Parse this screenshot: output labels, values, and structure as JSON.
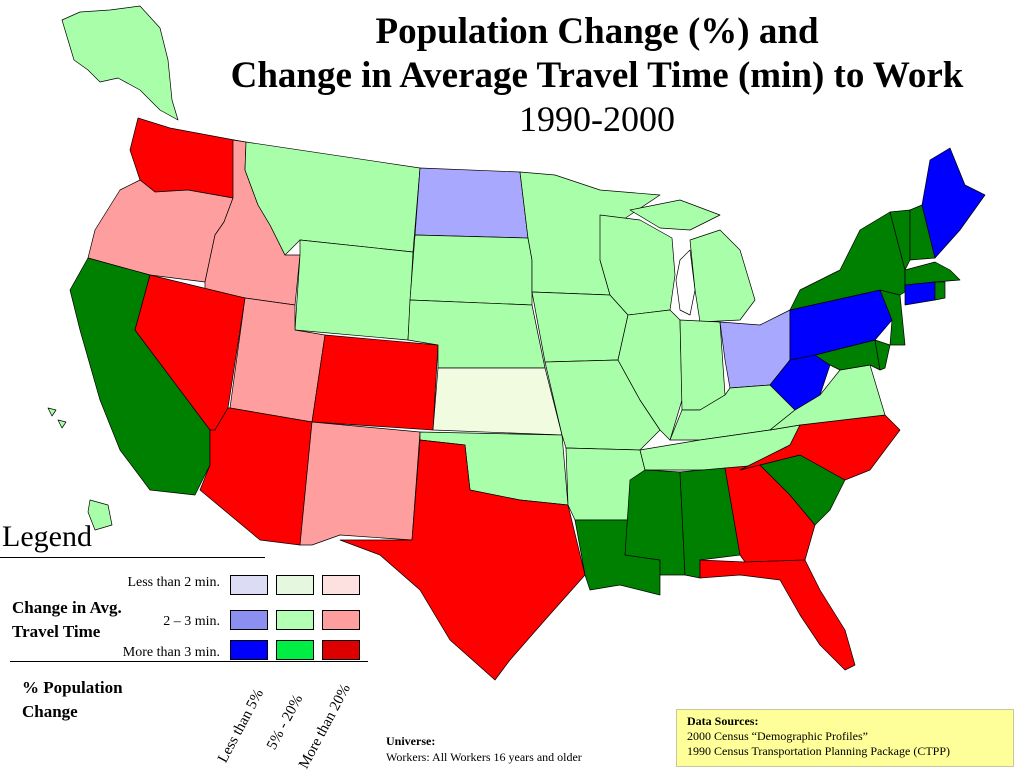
{
  "title": {
    "line1": "Population Change (%) and",
    "line2": "Change in Average Travel Time (min) to Work",
    "line3": "1990-2000"
  },
  "legend": {
    "heading": "Legend",
    "row_axis_label_line1": "Change in Avg.",
    "row_axis_label_line2": "Travel Time",
    "rows": [
      "Less than 2 min.",
      "2 – 3 min.",
      "More than 3 min."
    ],
    "col_axis_label_line1": "% Population",
    "col_axis_label_line2": "Change",
    "columns": [
      "Less than 5%",
      "5% - 20%",
      "More than 20%"
    ],
    "colors": [
      [
        "#dcdcf5",
        "#e6f7e0",
        "#fde0e0"
      ],
      [
        "#8b8ff0",
        "#b3ffb3",
        "#ff9e9e"
      ],
      [
        "#0000ff",
        "#00ee44",
        "#dd0000"
      ]
    ]
  },
  "map_colors": {
    "light_blue": "#a8a8ff",
    "light_green": "#a9ffa9",
    "pale_green": "#f0fbe0",
    "pink": "#ff9e9e",
    "red": "#ff0000",
    "dark_green": "#008000",
    "blue": "#0000ff",
    "water": "#ffffff"
  },
  "universe": {
    "label": "Universe:",
    "text": "Workers: All Workers 16 years and older"
  },
  "sources": {
    "label": "Data Sources:",
    "line1": "2000 Census “Demographic Profiles”",
    "line2": "1990 Census Transportation Planning Package (CTPP)"
  }
}
